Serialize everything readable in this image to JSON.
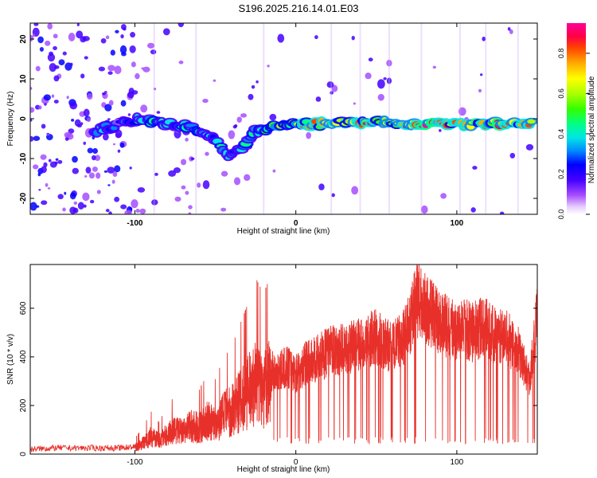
{
  "title": "S196.2025.216.14.01.E03",
  "top_panel": {
    "xlabel": "Height of straight line (km)",
    "ylabel": "Frequency (Hz)",
    "xticks": [
      "-100",
      "0",
      "100"
    ],
    "yticks": [
      "-20",
      "-10",
      "0",
      "10",
      "20"
    ],
    "colorbar": {
      "label": "Normalized spectral amplitude",
      "ticks": [
        "0.0",
        "0.2",
        "0.4",
        "0.6",
        "0.8"
      ]
    }
  },
  "bottom_panel": {
    "xlabel": "Height of straight line (km)",
    "ylabel": "SNR (10 * v/v)",
    "xticks": [
      "-100",
      "0",
      "100"
    ],
    "yticks": [
      "0",
      "200",
      "400",
      "600"
    ]
  },
  "colors": {
    "snr_line": "#e8302a",
    "noise_purple": "#8a2be2"
  },
  "chart_data": [
    {
      "type": "heatmap",
      "xlabel": "Height of straight line (km)",
      "ylabel": "Frequency (Hz)",
      "xlim": [
        -165,
        150
      ],
      "ylim": [
        -24,
        24
      ],
      "zlim": [
        0,
        0.95
      ],
      "colorbar_label": "Normalized spectral amplitude",
      "ridge": [
        {
          "x": -125,
          "f": -3.0,
          "a": 0.35
        },
        {
          "x": -110,
          "f": -1.5,
          "a": 0.3
        },
        {
          "x": -96,
          "f": 0.0,
          "a": 0.4
        },
        {
          "x": -85,
          "f": -1.0,
          "a": 0.45
        },
        {
          "x": -75,
          "f": -1.5,
          "a": 0.4
        },
        {
          "x": -62,
          "f": -2.5,
          "a": 0.45
        },
        {
          "x": -50,
          "f": -5.0,
          "a": 0.4
        },
        {
          "x": -42,
          "f": -9.5,
          "a": 0.35
        },
        {
          "x": -35,
          "f": -8.0,
          "a": 0.35
        },
        {
          "x": -25,
          "f": -3.0,
          "a": 0.45
        },
        {
          "x": -15,
          "f": -2.0,
          "a": 0.6
        },
        {
          "x": -5,
          "f": -1.0,
          "a": 0.7
        },
        {
          "x": 10,
          "f": -1.5,
          "a": 0.8
        },
        {
          "x": 30,
          "f": -1.0,
          "a": 0.75
        },
        {
          "x": 45,
          "f": -1.0,
          "a": 0.85
        },
        {
          "x": 60,
          "f": -1.0,
          "a": 0.8
        },
        {
          "x": 75,
          "f": -1.5,
          "a": 0.9
        },
        {
          "x": 92,
          "f": -1.5,
          "a": 0.9
        },
        {
          "x": 110,
          "f": -1.5,
          "a": 0.85
        },
        {
          "x": 130,
          "f": -1.0,
          "a": 0.9
        },
        {
          "x": 148,
          "f": -1.0,
          "a": 0.8
        }
      ]
    },
    {
      "type": "line",
      "xlabel": "Height of straight line (km)",
      "ylabel": "SNR (10 * v/v)",
      "xlim": [
        -165,
        150
      ],
      "ylim": [
        0,
        780
      ],
      "series": [
        {
          "color": "#e8302a",
          "x": [
            -165,
            -150,
            -130,
            -110,
            -100,
            -95,
            -90,
            -85,
            -80,
            -75,
            -70,
            -65,
            -60,
            -55,
            -50,
            -45,
            -40,
            -35,
            -30,
            -25,
            -20,
            -15,
            -10,
            -5,
            0,
            5,
            10,
            15,
            20,
            25,
            30,
            35,
            40,
            45,
            50,
            55,
            60,
            65,
            70,
            75,
            80,
            85,
            90,
            95,
            100,
            105,
            110,
            115,
            120,
            125,
            130,
            135,
            140,
            145,
            150
          ],
          "y": [
            20,
            25,
            25,
            25,
            30,
            50,
            80,
            60,
            90,
            110,
            100,
            130,
            120,
            150,
            140,
            180,
            200,
            240,
            280,
            330,
            300,
            340,
            340,
            360,
            330,
            370,
            380,
            400,
            420,
            430,
            430,
            440,
            450,
            470,
            480,
            450,
            440,
            460,
            520,
            640,
            600,
            580,
            540,
            520,
            500,
            520,
            500,
            520,
            510,
            480,
            500,
            440,
            410,
            300,
            560
          ]
        }
      ]
    }
  ]
}
